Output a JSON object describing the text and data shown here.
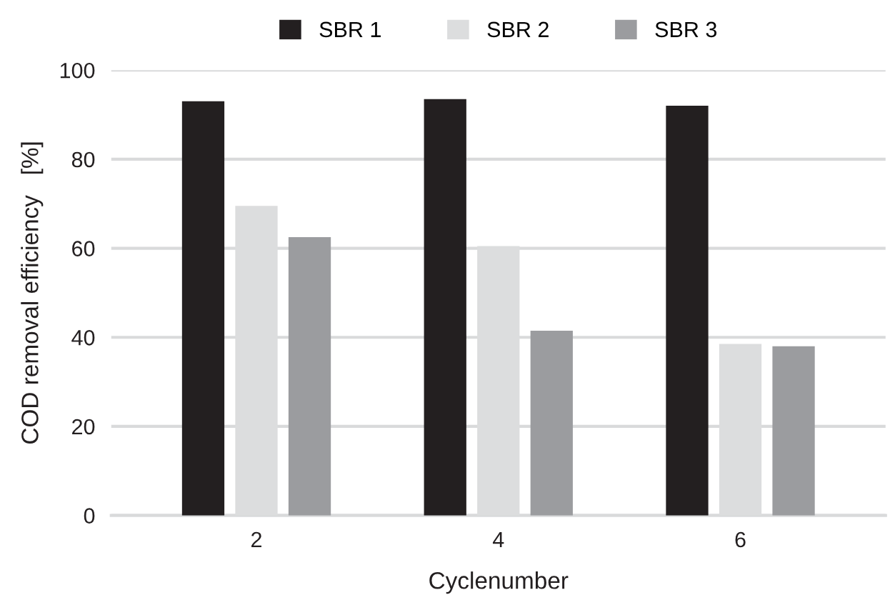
{
  "chart_data": {
    "type": "bar",
    "xlabel": "Cyclenumber",
    "ylabel": "COD removal efficiency   [%]",
    "categories": [
      "2",
      "4",
      "6"
    ],
    "series": [
      {
        "name": "SBR 1",
        "color": "#231f20",
        "values": [
          93,
          93.5,
          92
        ]
      },
      {
        "name": "SBR 2",
        "color": "#dcddde",
        "values": [
          69.5,
          60.5,
          38.5
        ]
      },
      {
        "name": "SBR 3",
        "color": "#9b9c9f",
        "values": [
          62.5,
          41.5,
          38
        ]
      }
    ],
    "ylim": [
      0,
      100
    ],
    "yticks": [
      0,
      20,
      40,
      60,
      80,
      100
    ],
    "grid": "y",
    "legend": "top"
  }
}
